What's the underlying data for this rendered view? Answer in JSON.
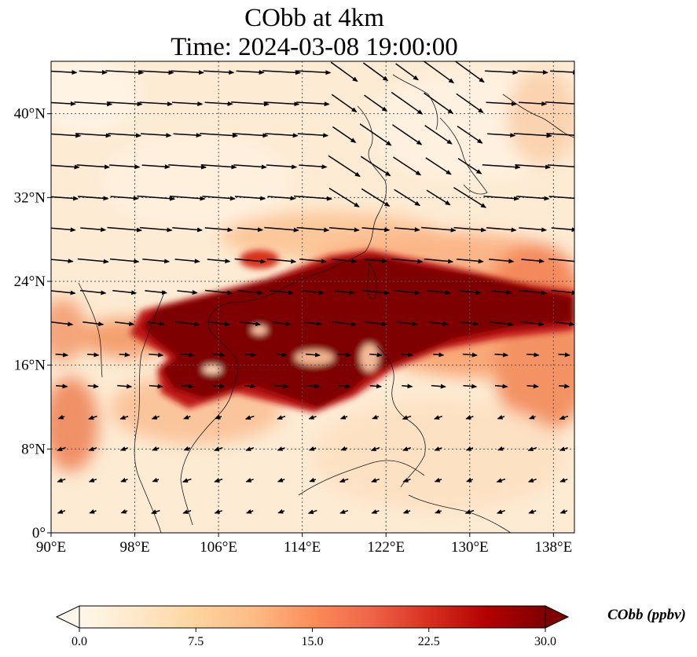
{
  "title": {
    "line1": "CObb at 4km",
    "line2": "Time: 2024-03-08 19:00:00"
  },
  "map": {
    "projection": "PlateCarree",
    "lon_range": [
      90,
      140
    ],
    "lat_range": [
      0,
      45
    ],
    "lon_ticks": [
      90,
      98,
      106,
      114,
      122,
      130,
      138
    ],
    "lat_ticks": [
      0,
      8,
      16,
      24,
      32,
      40
    ],
    "lon_tick_labels": [
      "90°E",
      "98°E",
      "106°E",
      "114°E",
      "122°E",
      "130°E",
      "138°E"
    ],
    "lat_tick_labels": [
      "0°",
      "8°N",
      "16°N",
      "24°N",
      "32°N",
      "40°N"
    ],
    "gridlines": "dotted",
    "variable": "CObb",
    "units": "ppbv",
    "wind_vectors": "black arrows"
  },
  "colorbar": {
    "label": "CObb (ppbv)",
    "cmap": "OrRd",
    "min": 0.0,
    "max": 30.0,
    "extend": "both",
    "tick_labels": [
      "0.0",
      "7.5",
      "15.0",
      "22.5",
      "30.0"
    ],
    "colors": [
      "#fff7ec",
      "#fee8c8",
      "#fdd49e",
      "#fdbb84",
      "#fc8d59",
      "#ef6548",
      "#d7301f",
      "#b30000",
      "#7f0000"
    ]
  }
}
